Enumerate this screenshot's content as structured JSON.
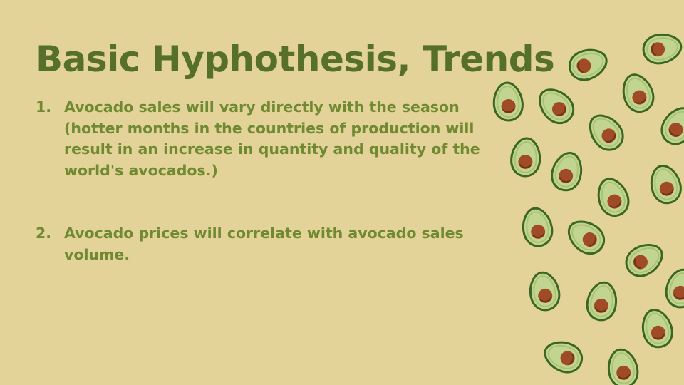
{
  "slide": {
    "title": "Basic Hyphothesis, Trends",
    "items": [
      {
        "number": "1.",
        "text": "Avocado sales will vary directly with the season (hotter months in the countries of production will result in an increase in quantity and quality of the world's avocados.)"
      },
      {
        "number": "2.",
        "text": "Avocado prices will correlate with avocado sales volume."
      }
    ]
  },
  "decoration": {
    "icon": "avocado-half-icon",
    "colors": {
      "background": "#e3d398",
      "title": "#56702c",
      "body_text": "#6f8a32",
      "avocado_skin": "#3c6624",
      "avocado_flesh": "#c2d590",
      "avocado_pit": "#a14a26"
    }
  }
}
